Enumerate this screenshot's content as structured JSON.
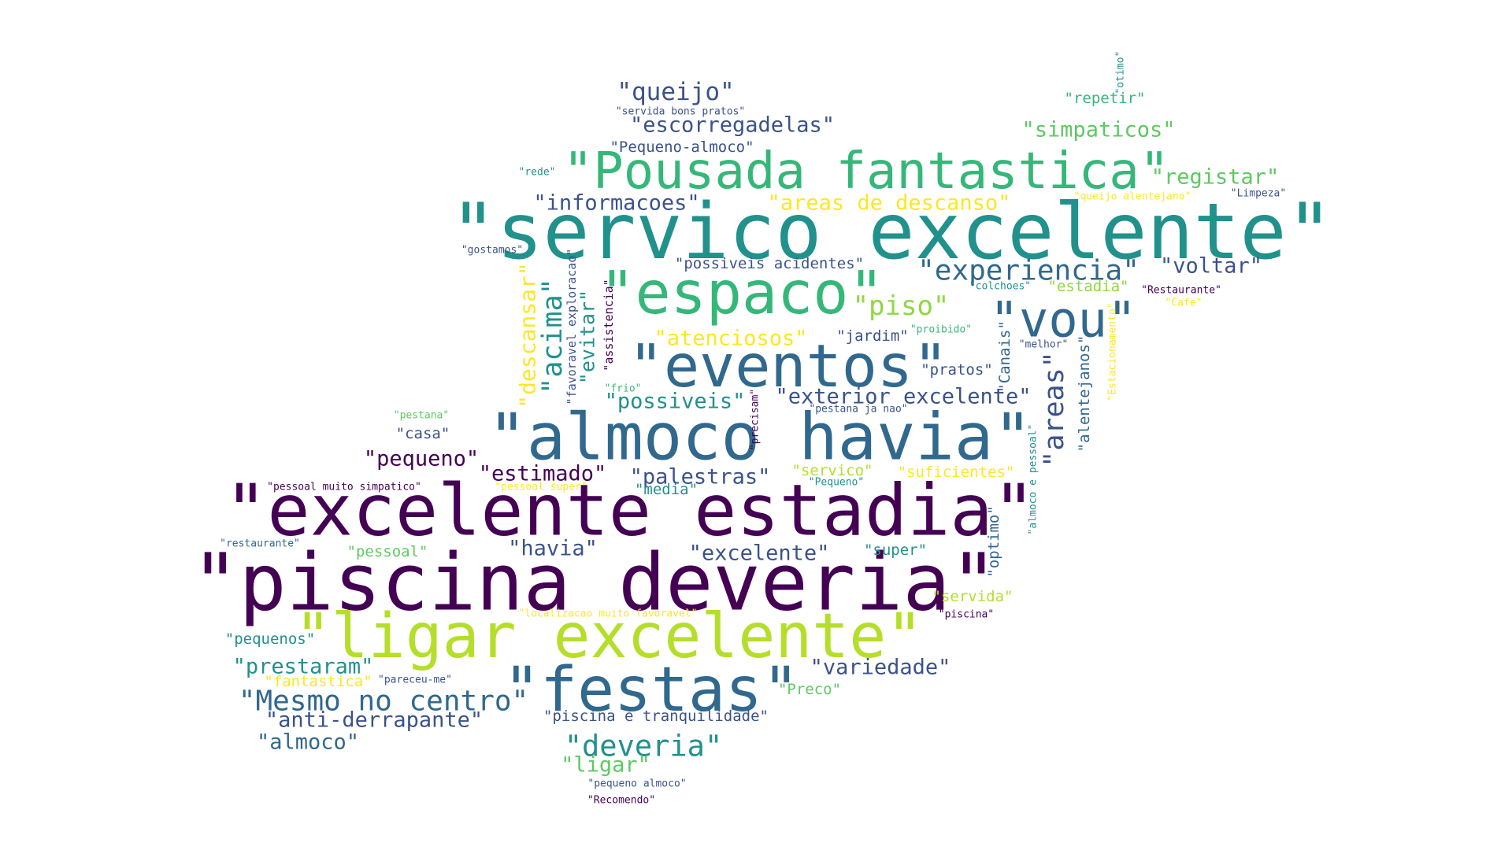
{
  "palette": {
    "c1": "#440154",
    "c2": "#3b528b",
    "c3": "#31688e",
    "c4": "#21918c",
    "c5": "#35b779",
    "c6": "#5ec962",
    "c7": "#90d743",
    "c8": "#b5de2b",
    "c9": "#fde725"
  },
  "words": [
    {
      "text": "\"servico excelente\"",
      "color": "c4",
      "rotated": false
    },
    {
      "text": "\"piscina deveria\"",
      "color": "c1",
      "rotated": false
    },
    {
      "text": "\"excelente estadia\"",
      "color": "c1",
      "rotated": false
    },
    {
      "text": "\"almoco havia\"",
      "color": "c3",
      "rotated": false
    },
    {
      "text": "\"ligar excelente\"",
      "color": "c8",
      "rotated": false
    },
    {
      "text": "\"Pousada fantastica\"",
      "color": "c5",
      "rotated": false
    },
    {
      "text": "\"espaco\"",
      "color": "c5",
      "rotated": false
    },
    {
      "text": "\"eventos\"",
      "color": "c3",
      "rotated": false
    },
    {
      "text": "\"festas\"",
      "color": "c3",
      "rotated": false
    },
    {
      "text": "\"vou\"",
      "color": "c3",
      "rotated": false
    },
    {
      "text": "\"Mesmo no centro\"",
      "color": "c3",
      "rotated": false
    },
    {
      "text": "\"experiencia\"",
      "color": "c3",
      "rotated": false
    },
    {
      "text": "\"piso\"",
      "color": "c7",
      "rotated": false
    },
    {
      "text": "\"deveria\"",
      "color": "c4",
      "rotated": false
    },
    {
      "text": "\"queijo\"",
      "color": "c2",
      "rotated": false
    },
    {
      "text": "\"escorregadelas\"",
      "color": "c2",
      "rotated": false
    },
    {
      "text": "\"informacoes\"",
      "color": "c2",
      "rotated": false
    },
    {
      "text": "\"areas de descanso\"",
      "color": "c9",
      "rotated": false
    },
    {
      "text": "\"registar\"",
      "color": "c6",
      "rotated": false
    },
    {
      "text": "\"voltar\"",
      "color": "c2",
      "rotated": false
    },
    {
      "text": "\"simpaticos\"",
      "color": "c6",
      "rotated": false
    },
    {
      "text": "\"exterior excelente\"",
      "color": "c2",
      "rotated": false
    },
    {
      "text": "\"pequeno\"",
      "color": "c1",
      "rotated": false
    },
    {
      "text": "\"estimado\"",
      "color": "c1",
      "rotated": false
    },
    {
      "text": "\"palestras\"",
      "color": "c2",
      "rotated": false
    },
    {
      "text": "\"havia\"",
      "color": "c2",
      "rotated": false
    },
    {
      "text": "\"excelente\"",
      "color": "c2",
      "rotated": false
    },
    {
      "text": "\"atenciosos\"",
      "color": "c9",
      "rotated": false
    },
    {
      "text": "\"possiveis\"",
      "color": "c4",
      "rotated": false
    },
    {
      "text": "\"prestaram\"",
      "color": "c4",
      "rotated": false
    },
    {
      "text": "\"anti-derrapante\"",
      "color": "c2",
      "rotated": false
    },
    {
      "text": "\"almoco\"",
      "color": "c3",
      "rotated": false
    },
    {
      "text": "\"variedade\"",
      "color": "c2",
      "rotated": false
    },
    {
      "text": "\"ligar\"",
      "color": "c6",
      "rotated": false
    },
    {
      "text": "\"jardim\"",
      "color": "c2",
      "rotated": false
    },
    {
      "text": "\"pratos\"",
      "color": "c2",
      "rotated": false
    },
    {
      "text": "\"casa\"",
      "color": "c2",
      "rotated": false
    },
    {
      "text": "\"pessoal\"",
      "color": "c6",
      "rotated": false
    },
    {
      "text": "\"pequenos\"",
      "color": "c4",
      "rotated": false
    },
    {
      "text": "\"servico\"",
      "color": "c8",
      "rotated": false
    },
    {
      "text": "\"suficientes\"",
      "color": "c9",
      "rotated": false
    },
    {
      "text": "\"super\"",
      "color": "c4",
      "rotated": false
    },
    {
      "text": "\"servida\"",
      "color": "c8",
      "rotated": false
    },
    {
      "text": "\"media\"",
      "color": "c4",
      "rotated": false
    },
    {
      "text": "\"fantastica\"",
      "color": "c9",
      "rotated": false
    },
    {
      "text": "\"Preco\"",
      "color": "c6",
      "rotated": false
    },
    {
      "text": "\"piscina e tranquilidade\"",
      "color": "c2",
      "rotated": false
    },
    {
      "text": "\"possiveis acidentes\"",
      "color": "c2",
      "rotated": false
    },
    {
      "text": "\"Pequeno-almoco\"",
      "color": "c2",
      "rotated": false
    },
    {
      "text": "\"estadia\"",
      "color": "c7",
      "rotated": false
    },
    {
      "text": "\"repetir\"",
      "color": "c5",
      "rotated": false
    },
    {
      "text": "\"servida bons pratos\"",
      "color": "c2",
      "rotated": false
    },
    {
      "text": "\"rede\"",
      "color": "c4",
      "rotated": false
    },
    {
      "text": "\"queijo alentejano\"",
      "color": "c9",
      "rotated": false
    },
    {
      "text": "\"Limpeza\"",
      "color": "c2",
      "rotated": false
    },
    {
      "text": "\"gostamos\"",
      "color": "c2",
      "rotated": false
    },
    {
      "text": "\"colchoes\"",
      "color": "c4",
      "rotated": false
    },
    {
      "text": "\"Restaurante\"",
      "color": "c1",
      "rotated": false
    },
    {
      "text": "\"Cafe\"",
      "color": "c9",
      "rotated": false
    },
    {
      "text": "\"proibido\"",
      "color": "c5",
      "rotated": false
    },
    {
      "text": "\"melhor\"",
      "color": "c2",
      "rotated": false
    },
    {
      "text": "\"frio\"",
      "color": "c5",
      "rotated": false
    },
    {
      "text": "\"pestana ja nao\"",
      "color": "c2",
      "rotated": false
    },
    {
      "text": "\"pestana\"",
      "color": "c6",
      "rotated": false
    },
    {
      "text": "\"pessoal muito simpatico\"",
      "color": "c1",
      "rotated": false
    },
    {
      "text": "\"pessoal super\"",
      "color": "c9",
      "rotated": false
    },
    {
      "text": "\"Pequeno\"",
      "color": "c4",
      "rotated": false
    },
    {
      "text": "\"restaurante\"",
      "color": "c3",
      "rotated": false
    },
    {
      "text": "\"localizacao muito favoravel\"",
      "color": "c9",
      "rotated": false
    },
    {
      "text": "\"piscina\"",
      "color": "c1",
      "rotated": false
    },
    {
      "text": "\"pareceu-me\"",
      "color": "c2",
      "rotated": false
    },
    {
      "text": "\"pequeno almoco\"",
      "color": "c2",
      "rotated": false
    },
    {
      "text": "\"Recomendo\"",
      "color": "c1",
      "rotated": false
    },
    {
      "text": "\"descansar\"",
      "color": "c9",
      "rotated": true
    },
    {
      "text": "\"acima\"",
      "color": "c4",
      "rotated": true
    },
    {
      "text": "\"evitar\"",
      "color": "c4",
      "rotated": true
    },
    {
      "text": "\"favoravel exploracao\"",
      "color": "c2",
      "rotated": true
    },
    {
      "text": "\"assistencia\"",
      "color": "c1",
      "rotated": true
    },
    {
      "text": "\"areas\"",
      "color": "c2",
      "rotated": true
    },
    {
      "text": "\"Canais\"",
      "color": "c3",
      "rotated": true
    },
    {
      "text": "\"alentejanos\"",
      "color": "c3",
      "rotated": true
    },
    {
      "text": "\"Estacionamento\"",
      "color": "c9",
      "rotated": true
    },
    {
      "text": "\"almoco e pessoal\"",
      "color": "c4",
      "rotated": true
    },
    {
      "text": "\"optimo\"",
      "color": "c3",
      "rotated": true
    },
    {
      "text": "\"otimo\"",
      "color": "c4",
      "rotated": true
    },
    {
      "text": "\"precisam\"",
      "color": "c1",
      "rotated": true
    }
  ]
}
